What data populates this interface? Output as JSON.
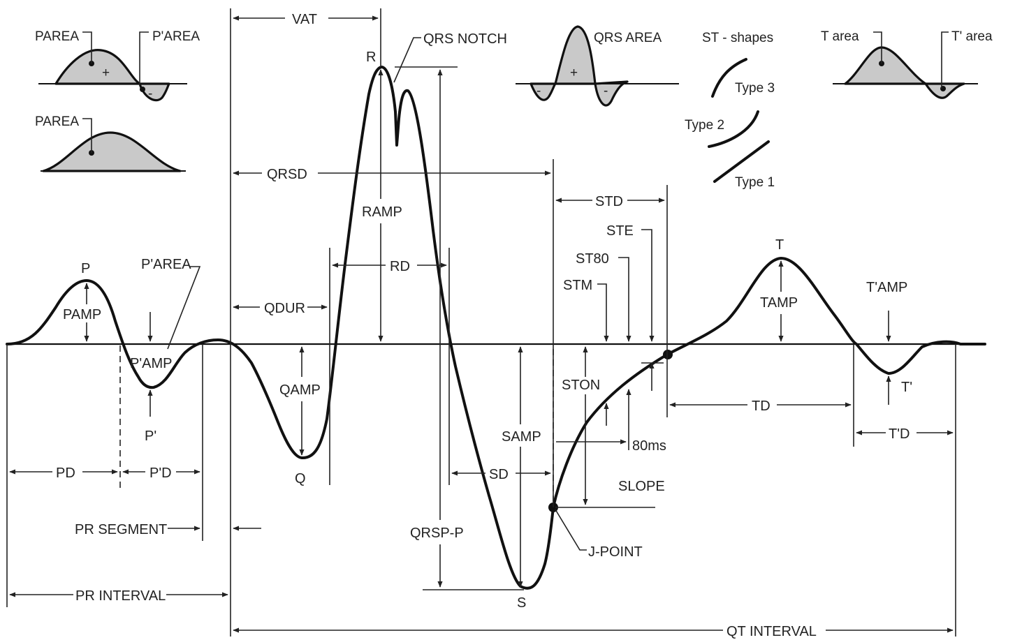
{
  "insets": {
    "p_area_a": "PAREA",
    "p_prime_area_a": "P'AREA",
    "p_area_b": "PAREA",
    "qrs_area": "QRS AREA",
    "st_shapes": "ST - shapes",
    "type3": "Type 3",
    "type2": "Type 2",
    "type1": "Type 1",
    "t_area": "T area",
    "t_prime_area": "T' area",
    "plus": "+",
    "minus": "-"
  },
  "waves": {
    "p": "P",
    "p_amp": "PAMP",
    "p_prime_area": "P'AREA",
    "p_prime_amp": "P'AMP",
    "p_prime": "P'",
    "q": "Q",
    "q_amp": "QAMP",
    "r": "R",
    "r_amp": "RAMP",
    "rd": "RD",
    "qrs_notch": "QRS NOTCH",
    "s": "S",
    "s_amp": "SAMP",
    "t": "T",
    "t_amp": "TAMP",
    "t_prime": "T'",
    "t_prime_amp": "T'AMP"
  },
  "intervals": {
    "vat": "VAT",
    "qrs_d": "QRSD",
    "q_dur": "QDUR",
    "pd": "PD",
    "p_prime_d": "P'D",
    "pr_segment": "PR SEGMENT",
    "pr_interval": "PR INTERVAL",
    "qrs_pp": "QRSP-P",
    "sd": "SD",
    "st_d": "STD",
    "st_e": "STE",
    "st80": "ST80",
    "st_m": "STM",
    "st_on": "STON",
    "ms80": "80ms",
    "slope": "SLOPE",
    "j_point": "J-POINT",
    "td": "TD",
    "t_prime_d": "T'D",
    "qt_interval": "QT INTERVAL"
  }
}
